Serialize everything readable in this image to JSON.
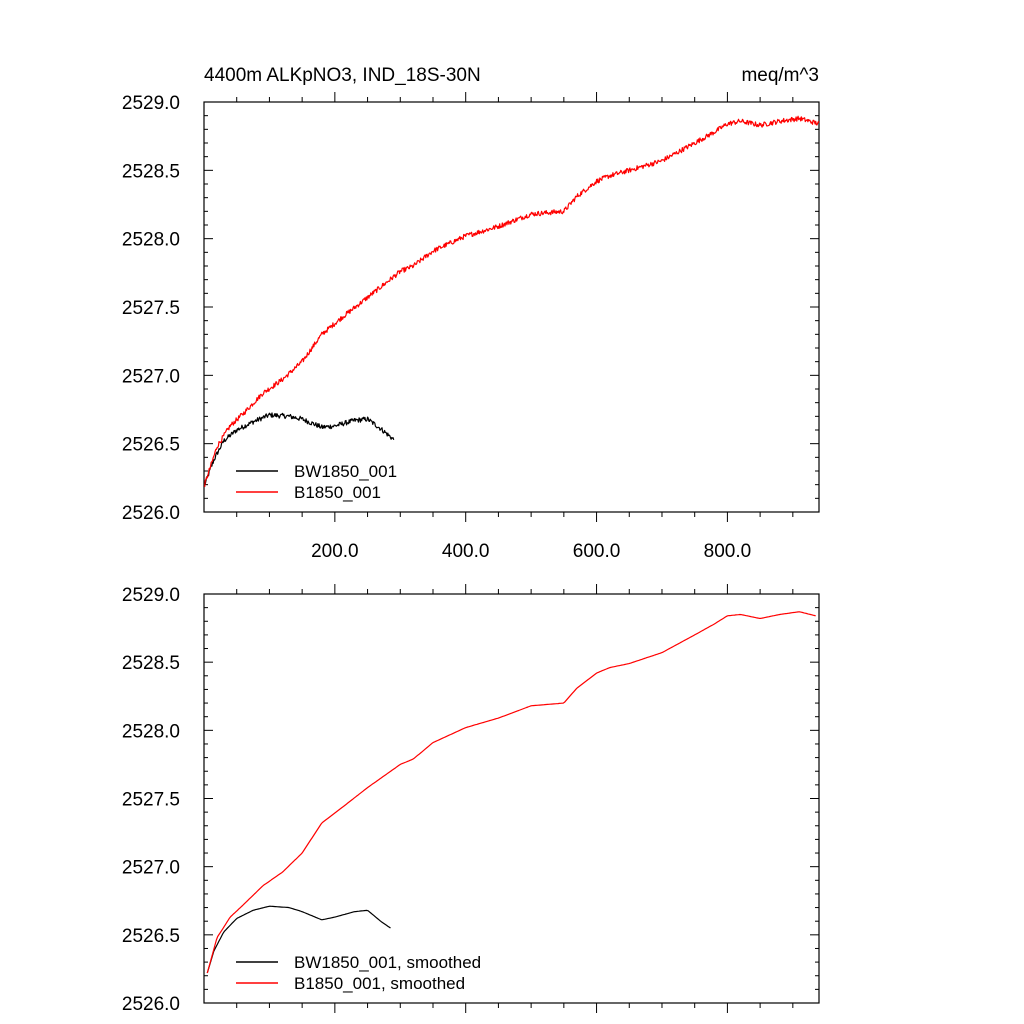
{
  "title": "4400m ALKpNO3, IND_18S-30N",
  "units": "meq/m^3",
  "colors": {
    "bw": "#000000",
    "b": "#ff0000",
    "axis": "#000000",
    "background": "#ffffff"
  },
  "chart_data": [
    {
      "type": "line",
      "title": "4400m ALKpNO3, IND_18S-30N",
      "units": "meq/m^3",
      "xlim": [
        0,
        940
      ],
      "ylim": [
        2526.0,
        2529.0
      ],
      "xticks": [
        200,
        400,
        600,
        800
      ],
      "xtick_labels": [
        "200.0",
        "400.0",
        "600.0",
        "800.0"
      ],
      "ytick_labels": [
        "2526.0",
        "2526.5",
        "2527.0",
        "2527.5",
        "2528.0",
        "2528.5",
        "2529.0"
      ],
      "grid": false,
      "legend_position": "bottom-left",
      "series": [
        {
          "name": "BW1850_001",
          "color": "#000000",
          "noise": 0.018,
          "x": [
            1,
            15,
            30,
            50,
            75,
            100,
            130,
            150,
            180,
            200,
            230,
            250,
            270,
            290
          ],
          "values": [
            2526.2,
            2526.38,
            2526.52,
            2526.6,
            2526.66,
            2526.71,
            2526.7,
            2526.68,
            2526.62,
            2526.63,
            2526.67,
            2526.68,
            2526.61,
            2526.53
          ]
        },
        {
          "name": "B1850_001",
          "color": "#ff0000",
          "noise": 0.018,
          "x": [
            1,
            20,
            40,
            60,
            90,
            120,
            150,
            180,
            210,
            250,
            300,
            320,
            350,
            400,
            450,
            500,
            550,
            570,
            600,
            620,
            650,
            700,
            750,
            780,
            800,
            820,
            850,
            880,
            910,
            940
          ],
          "values": [
            2526.2,
            2526.48,
            2526.63,
            2526.72,
            2526.87,
            2526.97,
            2527.1,
            2527.3,
            2527.42,
            2527.57,
            2527.76,
            2527.8,
            2527.91,
            2528.02,
            2528.09,
            2528.18,
            2528.2,
            2528.31,
            2528.42,
            2528.46,
            2528.5,
            2528.57,
            2528.7,
            2528.78,
            2528.84,
            2528.86,
            2528.83,
            2528.86,
            2528.88,
            2528.84
          ]
        }
      ]
    },
    {
      "type": "line",
      "xlim": [
        0,
        940
      ],
      "ylim": [
        2526.0,
        2529.0
      ],
      "xticks": [
        200,
        400,
        600,
        800
      ],
      "xtick_labels": [],
      "ytick_labels": [
        "2526.0",
        "2526.5",
        "2527.0",
        "2527.5",
        "2528.0",
        "2528.5",
        "2529.0"
      ],
      "grid": false,
      "legend_position": "bottom-left",
      "series": [
        {
          "name": "BW1850_001, smoothed",
          "color": "#000000",
          "noise": 0.0,
          "x": [
            5,
            15,
            30,
            50,
            75,
            100,
            130,
            150,
            180,
            200,
            230,
            250,
            270,
            285
          ],
          "values": [
            2526.22,
            2526.38,
            2526.52,
            2526.62,
            2526.68,
            2526.71,
            2526.7,
            2526.67,
            2526.61,
            2526.63,
            2526.67,
            2526.68,
            2526.6,
            2526.55
          ]
        },
        {
          "name": "B1850_001, smoothed",
          "color": "#ff0000",
          "noise": 0.0,
          "x": [
            5,
            20,
            40,
            60,
            90,
            120,
            150,
            180,
            210,
            250,
            300,
            320,
            350,
            400,
            450,
            500,
            550,
            570,
            600,
            620,
            650,
            700,
            750,
            780,
            800,
            820,
            850,
            880,
            910,
            935
          ],
          "values": [
            2526.22,
            2526.48,
            2526.63,
            2526.72,
            2526.86,
            2526.96,
            2527.1,
            2527.32,
            2527.43,
            2527.58,
            2527.75,
            2527.79,
            2527.91,
            2528.02,
            2528.09,
            2528.18,
            2528.2,
            2528.31,
            2528.42,
            2528.46,
            2528.49,
            2528.57,
            2528.7,
            2528.78,
            2528.84,
            2528.85,
            2528.82,
            2528.85,
            2528.87,
            2528.84
          ]
        }
      ]
    }
  ]
}
